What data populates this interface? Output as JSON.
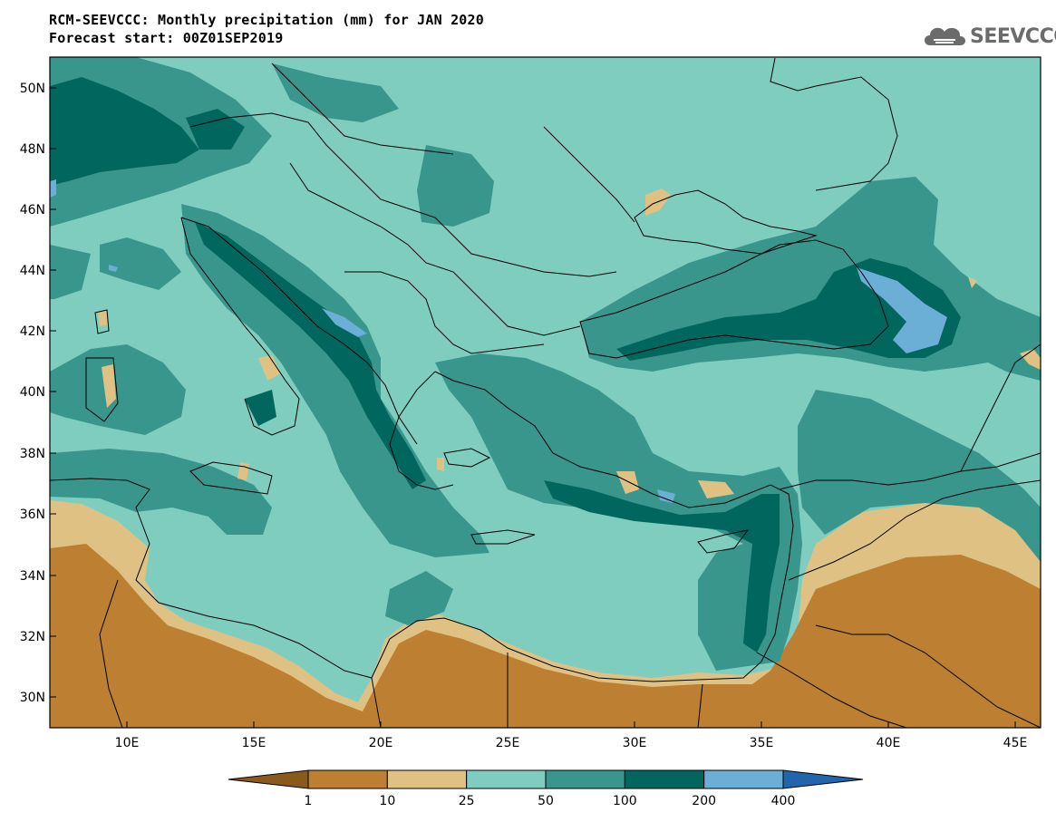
{
  "header": {
    "title_line1": "RCM-SEEVCCC: Monthly precipitation (mm) for JAN 2020",
    "title_line2": "Forecast start: 00Z01SEP2019"
  },
  "logo": {
    "text": "SEEVCCC",
    "icon": "cloud-icon",
    "color": "#6b6b6b"
  },
  "map": {
    "lat_labels": [
      "50N",
      "48N",
      "46N",
      "44N",
      "42N",
      "40N",
      "38N",
      "36N",
      "34N",
      "32N",
      "30N"
    ],
    "lon_labels": [
      "10E",
      "15E",
      "20E",
      "25E",
      "30E",
      "35E",
      "40E",
      "45E"
    ],
    "lat_values": [
      50,
      48,
      46,
      44,
      42,
      40,
      38,
      36,
      34,
      32,
      30
    ],
    "lon_values": [
      10,
      15,
      20,
      25,
      30,
      35,
      40,
      45
    ],
    "lat_range": [
      29,
      51
    ],
    "lon_range": [
      7,
      46
    ]
  },
  "colorbar": {
    "levels": [
      "1",
      "10",
      "25",
      "50",
      "100",
      "200",
      "400"
    ],
    "colors": [
      "#8a5a1c",
      "#bd7f31",
      "#dfc283",
      "#7fcdbe",
      "#39968d",
      "#01665e",
      "#6baed6",
      "#2166ac"
    ],
    "units": "mm"
  }
}
